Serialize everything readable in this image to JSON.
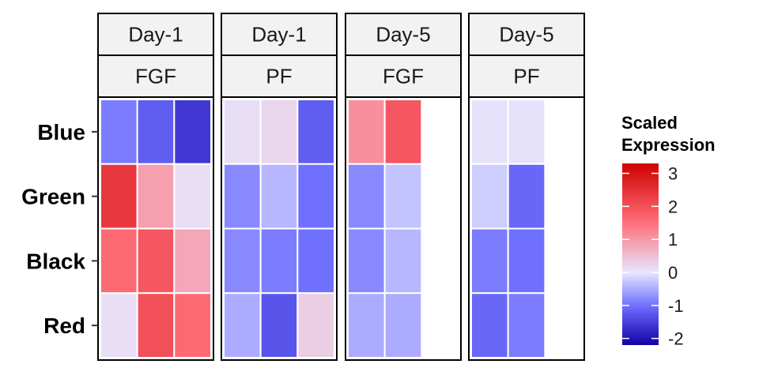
{
  "chart_data": {
    "type": "heatmap",
    "rows": [
      "Blue",
      "Green",
      "Black",
      "Red"
    ],
    "panels": [
      {
        "strip": [
          "Day-1",
          "FGF"
        ],
        "values": [
          [
            -0.9,
            -1.2,
            -1.6
          ],
          [
            2.4,
            0.9,
            0.1
          ],
          [
            1.6,
            1.9,
            0.8
          ],
          [
            0.1,
            2.0,
            1.6
          ]
        ]
      },
      {
        "strip": [
          "Day-1",
          "PF"
        ],
        "values": [
          [
            0.1,
            0.2,
            -1.2
          ],
          [
            -0.8,
            -0.4,
            -1.0
          ],
          [
            -0.8,
            -0.9,
            -1.0
          ],
          [
            -0.5,
            -1.3,
            0.3
          ]
        ]
      },
      {
        "strip": [
          "Day-5",
          "FGF"
        ],
        "values": [
          [
            1.1,
            1.9
          ],
          [
            -0.8,
            -0.3
          ],
          [
            -0.8,
            -0.4
          ],
          [
            -0.5,
            -0.5
          ]
        ]
      },
      {
        "strip": [
          "Day-5",
          "PF"
        ],
        "values": [
          [
            0.05,
            0.05
          ],
          [
            -0.2,
            -1.1
          ],
          [
            -0.9,
            -1.0
          ],
          [
            -1.1,
            -0.9
          ]
        ]
      }
    ],
    "legend": {
      "title": [
        "Scaled",
        "Expression"
      ],
      "range": [
        -2.2,
        3.3
      ],
      "ticks": [
        3,
        2,
        1,
        0,
        -1,
        -2
      ],
      "colors": {
        "low": "#1200a8",
        "lowmid": "#7070ff",
        "mid": "#e6e6ff",
        "highmid": "#ff6f7a",
        "high": "#d00000"
      }
    }
  }
}
